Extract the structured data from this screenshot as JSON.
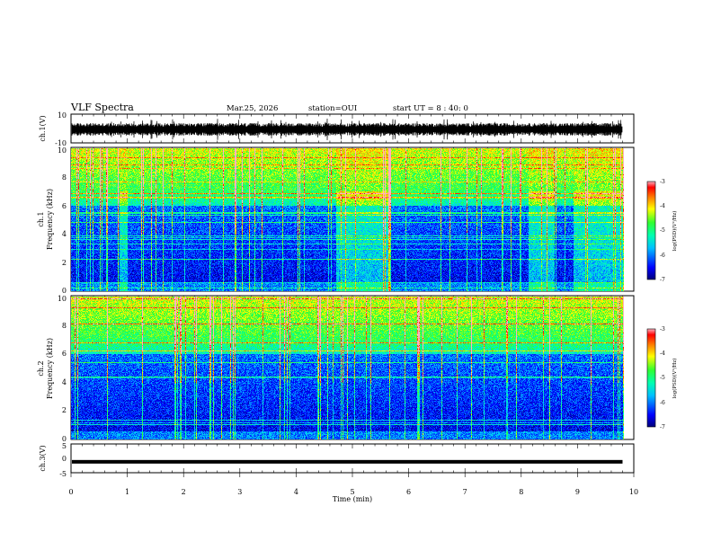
{
  "header": {
    "title": "VLF Spectra",
    "date": "Mar.25, 2026",
    "station": "station=OUI",
    "start": "start  UT =  8 : 40: 0"
  },
  "chart_data": [
    {
      "type": "line",
      "name": "ch1-waveform",
      "ylabel": "ch.1(V)",
      "ylim": [
        -10,
        10
      ],
      "yticks": [
        "10",
        "-10"
      ],
      "xlim": [
        0,
        10
      ],
      "series": [
        {
          "name": "ch.1",
          "description_level": 0
        }
      ]
    },
    {
      "type": "heatmap",
      "name": "ch1-spectrogram",
      "ylabel_top": "ch.1",
      "ylabel": "Frequency (kHz)",
      "ylim": [
        0,
        10
      ],
      "yticks": [
        "0",
        "2",
        "4",
        "6",
        "8",
        "10"
      ],
      "xlim": [
        0,
        9.8
      ],
      "colorbar": {
        "label": "log(PSD)(V²/Hz)",
        "range": [
          -7,
          -3
        ],
        "ticks": [
          "-3",
          "-4",
          "-5",
          "-6",
          "-7"
        ]
      },
      "bright_intervals_min": [
        [
          0.85,
          1.0
        ],
        [
          4.7,
          5.65
        ],
        [
          8.1,
          8.55
        ],
        [
          8.9,
          9.8
        ]
      ]
    },
    {
      "type": "heatmap",
      "name": "ch2-spectrogram",
      "ylabel_top": "ch.2",
      "ylabel": "Frequency (kHz)",
      "ylim": [
        0,
        10
      ],
      "yticks": [
        "0",
        "2",
        "4",
        "6",
        "8",
        "10"
      ],
      "xlim": [
        0,
        9.8
      ],
      "colorbar": {
        "label": "log(PSD)(V²/Hz)",
        "range": [
          -7,
          -3
        ],
        "ticks": [
          "-3",
          "-4",
          "-5",
          "-6",
          "-7"
        ]
      }
    },
    {
      "type": "line",
      "name": "ch3-waveform",
      "ylabel": "ch.3(V)",
      "ylim": [
        -5,
        5
      ],
      "yticks": [
        "5",
        "0",
        "-5"
      ],
      "xlim": [
        0,
        10
      ],
      "series": [
        {
          "name": "ch.3",
          "level": -1.2
        }
      ]
    }
  ],
  "xaxis": {
    "label": "Time  (min)",
    "ticks": [
      "0",
      "1",
      "2",
      "3",
      "4",
      "5",
      "6",
      "7",
      "8",
      "9",
      "10"
    ]
  }
}
